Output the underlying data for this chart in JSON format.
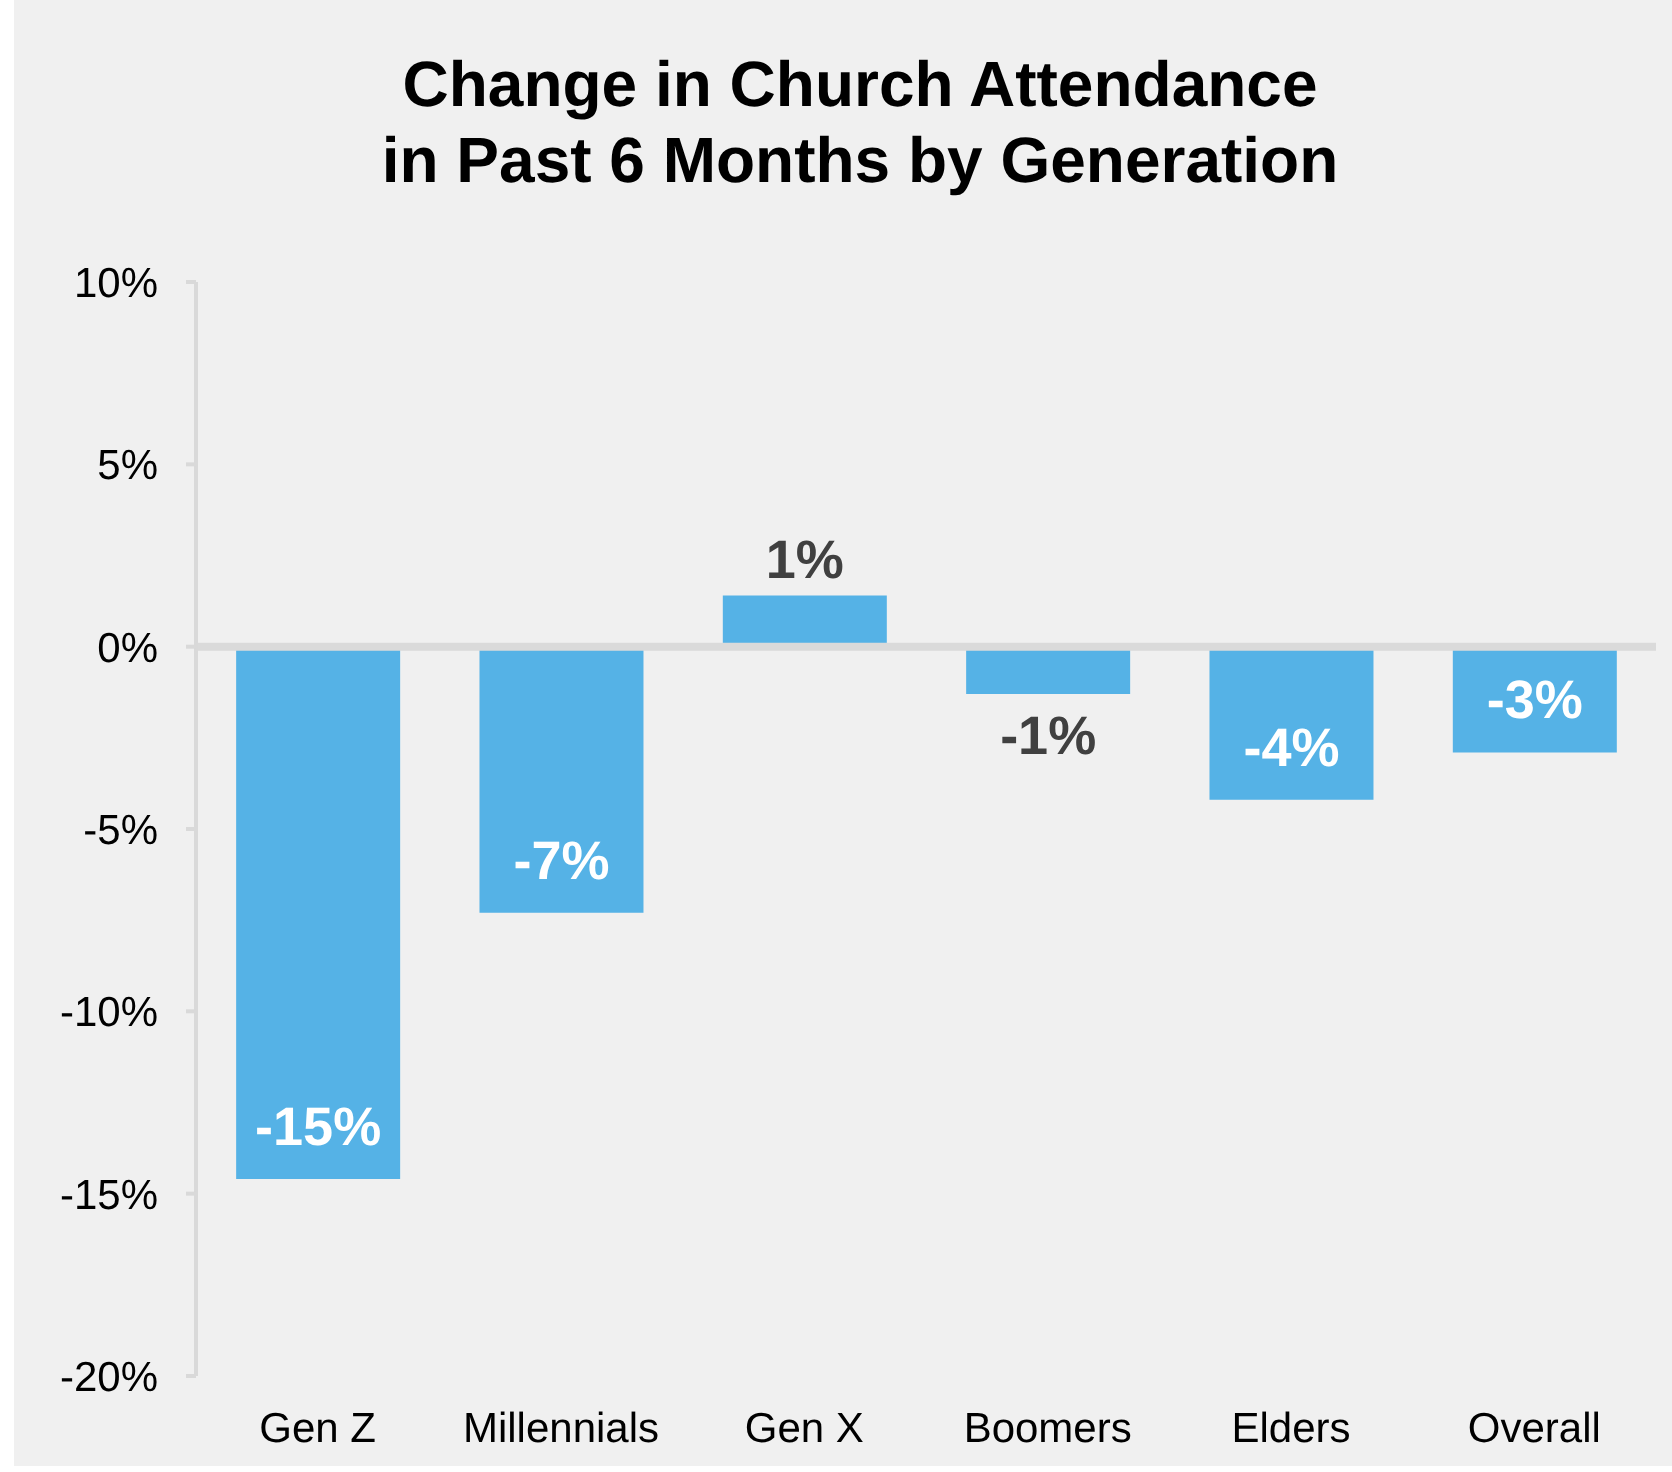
{
  "chart_data": {
    "type": "bar",
    "title": "Change in Church Attendance\nin Past 6 Months by Generation",
    "categories": [
      "Gen Z",
      "Millennials",
      "Gen X",
      "Boomers",
      "Elders",
      "Overall"
    ],
    "values": [
      -14.6,
      -7.3,
      1.4,
      -1.3,
      -4.2,
      -2.9
    ],
    "value_labels": [
      "-15%",
      "-7%",
      "1%",
      "-1%",
      "-4%",
      "-3%"
    ],
    "color": "#55b2e6",
    "ylim": [
      -20,
      10
    ],
    "yticks": [
      {
        "value": -20,
        "label": "-20%"
      },
      {
        "value": -15,
        "label": "-15%"
      },
      {
        "value": -10,
        "label": "-10%"
      },
      {
        "value": -5,
        "label": "-5%"
      },
      {
        "value": 0,
        "label": "0%"
      },
      {
        "value": 5,
        "label": "5%"
      },
      {
        "value": 10,
        "label": "10%"
      }
    ]
  }
}
